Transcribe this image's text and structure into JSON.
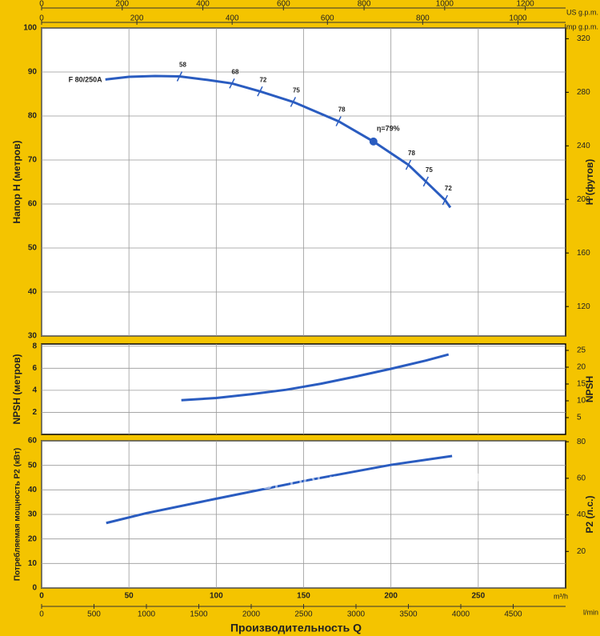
{
  "x_axis": {
    "label": "m³/h",
    "xlim": [
      0,
      300
    ],
    "xticks": [
      0,
      50,
      100,
      150,
      200,
      250
    ]
  },
  "x_axes": [
    {
      "name": "US g.p.m.",
      "xlim": [
        0,
        1300
      ],
      "xticks": [
        0,
        200,
        400,
        600,
        800,
        1000,
        1200
      ]
    },
    {
      "name": "Imp g.p.m.",
      "xlim": [
        0,
        1100
      ],
      "xticks": [
        0,
        200,
        400,
        600,
        800,
        1000
      ]
    },
    {
      "name": "l/min",
      "xlim": [
        0,
        5000
      ],
      "xticks": [
        0,
        500,
        1000,
        1500,
        2000,
        2500,
        3000,
        3500,
        4000,
        4500
      ]
    }
  ],
  "x_label": "Производительность Q",
  "watermark": "ePool.ru",
  "chart_data": [
    {
      "type": "line",
      "y_label": "Напор H (метров)",
      "y2_label": "H (футов)",
      "ylim": [
        30,
        100
      ],
      "yticks": [
        30,
        40,
        50,
        60,
        70,
        80,
        90,
        100
      ],
      "y2lim": [
        98,
        328
      ],
      "y2ticks": [
        120,
        160,
        200,
        240,
        280,
        320
      ],
      "grid": true,
      "series": [
        {
          "name": "F 80/250A",
          "color": "#2a5cc0",
          "x": [
            36.5,
            50,
            65,
            79,
            95,
            109,
            125,
            144,
            170,
            190,
            210,
            220,
            231,
            234
          ],
          "values": [
            88.3,
            88.9,
            89.1,
            89.0,
            88.2,
            87.4,
            85.6,
            83.2,
            78.8,
            74.2,
            68.9,
            65.1,
            60.9,
            59.2
          ]
        }
      ],
      "efficiency": {
        "x": [
          79,
          109,
          125,
          144,
          170,
          210,
          220,
          231
        ],
        "values": [
          89.0,
          87.4,
          85.6,
          83.2,
          78.8,
          68.9,
          65.1,
          60.9
        ],
        "labels": [
          "58",
          "68",
          "72",
          "75",
          "78",
          "78",
          "75",
          "72"
        ]
      },
      "best_point": {
        "x": 190,
        "value": 74.2,
        "label": "η=79%"
      }
    },
    {
      "type": "line",
      "y_label": "NPSH (метров)",
      "y2_label": "NPSH",
      "ylim": [
        0,
        8.2
      ],
      "yticks": [
        2,
        4,
        6,
        8
      ],
      "y2lim": [
        0,
        26.9
      ],
      "y2ticks": [
        5,
        10,
        15,
        20,
        25
      ],
      "grid": true,
      "series": [
        {
          "color": "#2a5cc0",
          "x": [
            80,
            100,
            120,
            140,
            160,
            180,
            200,
            220,
            233
          ],
          "values": [
            3.1,
            3.3,
            3.65,
            4.05,
            4.6,
            5.25,
            5.95,
            6.7,
            7.25
          ]
        }
      ]
    },
    {
      "type": "line",
      "y_label": "Потребляемая мощность P2 (кВт)",
      "y2_label": "P2 (л.с.)",
      "ylim": [
        0,
        60
      ],
      "yticks": [
        0,
        10,
        20,
        30,
        40,
        50,
        60
      ],
      "y2lim": [
        0,
        80.5
      ],
      "y2ticks": [
        20,
        40,
        60,
        80
      ],
      "grid": true,
      "series": [
        {
          "color": "#2a5cc0",
          "x": [
            37,
            60,
            100,
            150,
            200,
            235
          ],
          "values": [
            26.5,
            30.5,
            36.4,
            43.6,
            50.2,
            53.8
          ]
        }
      ]
    }
  ]
}
